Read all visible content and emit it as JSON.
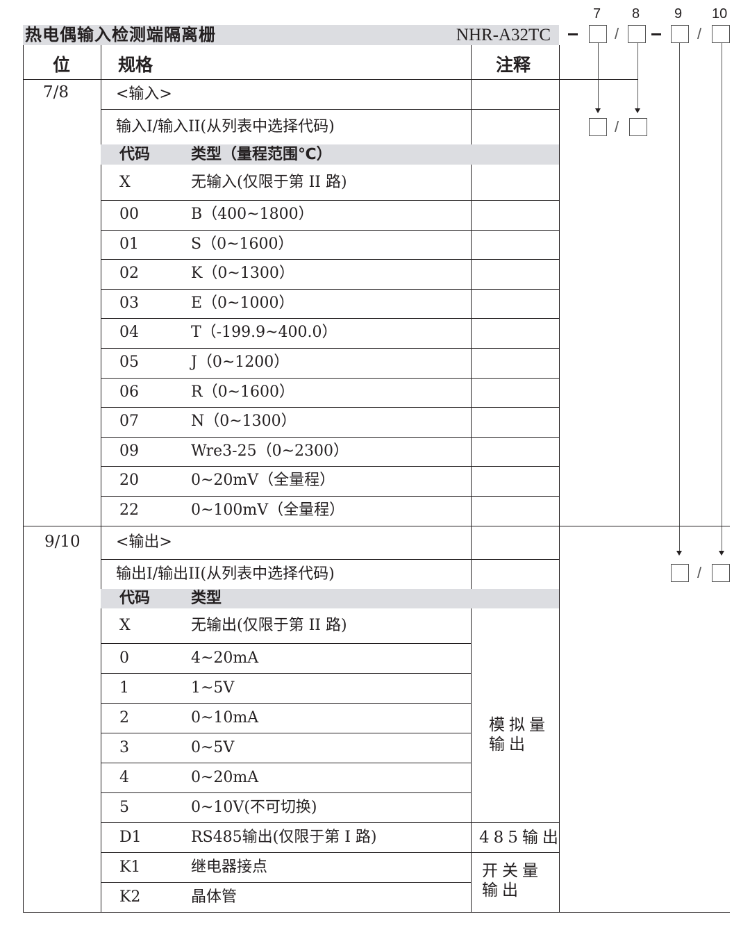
{
  "title": {
    "name": "热电偶输入检测端隔离栅",
    "model": "NHR-A32TC"
  },
  "code_positions": [
    "7",
    "8",
    "9",
    "10"
  ],
  "header": {
    "position": "位",
    "spec": "规格",
    "note": "注释"
  },
  "input": {
    "position": "7/8",
    "section": "<输入>",
    "desc": "输入I/输入II(从列表中选择代码)",
    "col_code": "代码",
    "col_type": "类型（量程范围℃）",
    "rows": [
      {
        "code": "X",
        "type": "无输入(仅限于第 II 路)"
      },
      {
        "code": "00",
        "type": "B（400~1800）"
      },
      {
        "code": "01",
        "type": "S（0~1600）"
      },
      {
        "code": "02",
        "type": "K（0~1300）"
      },
      {
        "code": "03",
        "type": "E（0~1000）"
      },
      {
        "code": "04",
        "type": "T（-199.9~400.0）"
      },
      {
        "code": "05",
        "type": " J（0~1200）"
      },
      {
        "code": "06",
        "type": "R（0~1600）"
      },
      {
        "code": "07",
        "type": "N（0~1300）"
      },
      {
        "code": "09",
        "type": "Wre3-25（0~2300）"
      },
      {
        "code": "20",
        "type": "0~20mV（全量程）"
      },
      {
        "code": "22",
        "type": "0~100mV（全量程）"
      }
    ]
  },
  "output": {
    "position": "9/10",
    "section": "<输出>",
    "desc": "输出I/输出II(从列表中选择代码)",
    "col_code": "代码",
    "col_type": "类型",
    "rows": [
      {
        "code": "X",
        "type": "无输出(仅限于第 II 路)"
      },
      {
        "code": "0",
        "type": "4~20mA"
      },
      {
        "code": "1",
        "type": "1~5V"
      },
      {
        "code": "2",
        "type": "0~10mA"
      },
      {
        "code": "3",
        "type": "0~5V"
      },
      {
        "code": "4",
        "type": "0~20mA"
      },
      {
        "code": "5",
        "type": "0~10V(不可切换)"
      },
      {
        "code": "D1",
        "type": "RS485输出(仅限于第 I 路)"
      },
      {
        "code": "K1",
        "type": "继电器接点"
      },
      {
        "code": "K2",
        "type": "晶体管"
      }
    ],
    "notes": {
      "analog": [
        "模拟量",
        "输出"
      ],
      "rs485": "485输出",
      "switch": [
        "开关量",
        "输出"
      ]
    }
  }
}
